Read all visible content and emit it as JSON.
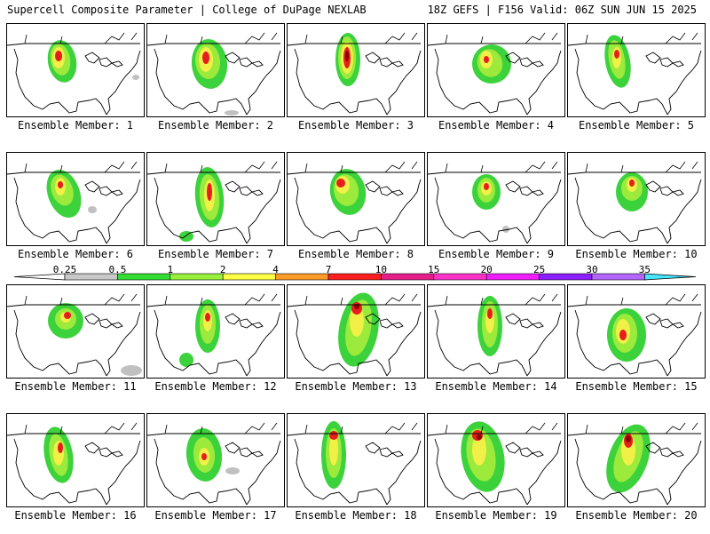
{
  "header": {
    "left_title": "Supercell Composite Parameter | College of DuPage NEXLAB",
    "right_title": "18Z GEFS | F156 Valid: 06Z SUN JUN 15 2025"
  },
  "panels": [
    {
      "label": "Ensemble Member: 1"
    },
    {
      "label": "Ensemble Member: 2"
    },
    {
      "label": "Ensemble Member: 3"
    },
    {
      "label": "Ensemble Member: 4"
    },
    {
      "label": "Ensemble Member: 5"
    },
    {
      "label": "Ensemble Member: 6"
    },
    {
      "label": "Ensemble Member: 7"
    },
    {
      "label": "Ensemble Member: 8"
    },
    {
      "label": "Ensemble Member: 9"
    },
    {
      "label": "Ensemble Member: 10"
    },
    {
      "label": "Ensemble Member: 11"
    },
    {
      "label": "Ensemble Member: 12"
    },
    {
      "label": "Ensemble Member: 13"
    },
    {
      "label": "Ensemble Member: 14"
    },
    {
      "label": "Ensemble Member: 15"
    },
    {
      "label": "Ensemble Member: 16"
    },
    {
      "label": "Ensemble Member: 17"
    },
    {
      "label": "Ensemble Member: 18"
    },
    {
      "label": "Ensemble Member: 19"
    },
    {
      "label": "Ensemble Member: 20"
    }
  ],
  "colorbar": {
    "labels": [
      "0.25",
      "0.5",
      "1",
      "2",
      "4",
      "7",
      "10",
      "15",
      "20",
      "25",
      "30",
      "35"
    ],
    "colors": [
      "#c8c8c8",
      "#32dc32",
      "#96f03c",
      "#ffff46",
      "#ff9b28",
      "#ff1e1e",
      "#e61e8c",
      "#ff32c8",
      "#f01eff",
      "#8c1eff",
      "#b464ff",
      "#46e6ff"
    ]
  },
  "field_colors": {
    "gray": "#c0c0c0",
    "green": "#3cd23c",
    "lightgreen": "#9bea3c",
    "yellow": "#f0f046",
    "orange": "#ff9628",
    "red": "#e61e1e",
    "darkred": "#8c0000"
  }
}
